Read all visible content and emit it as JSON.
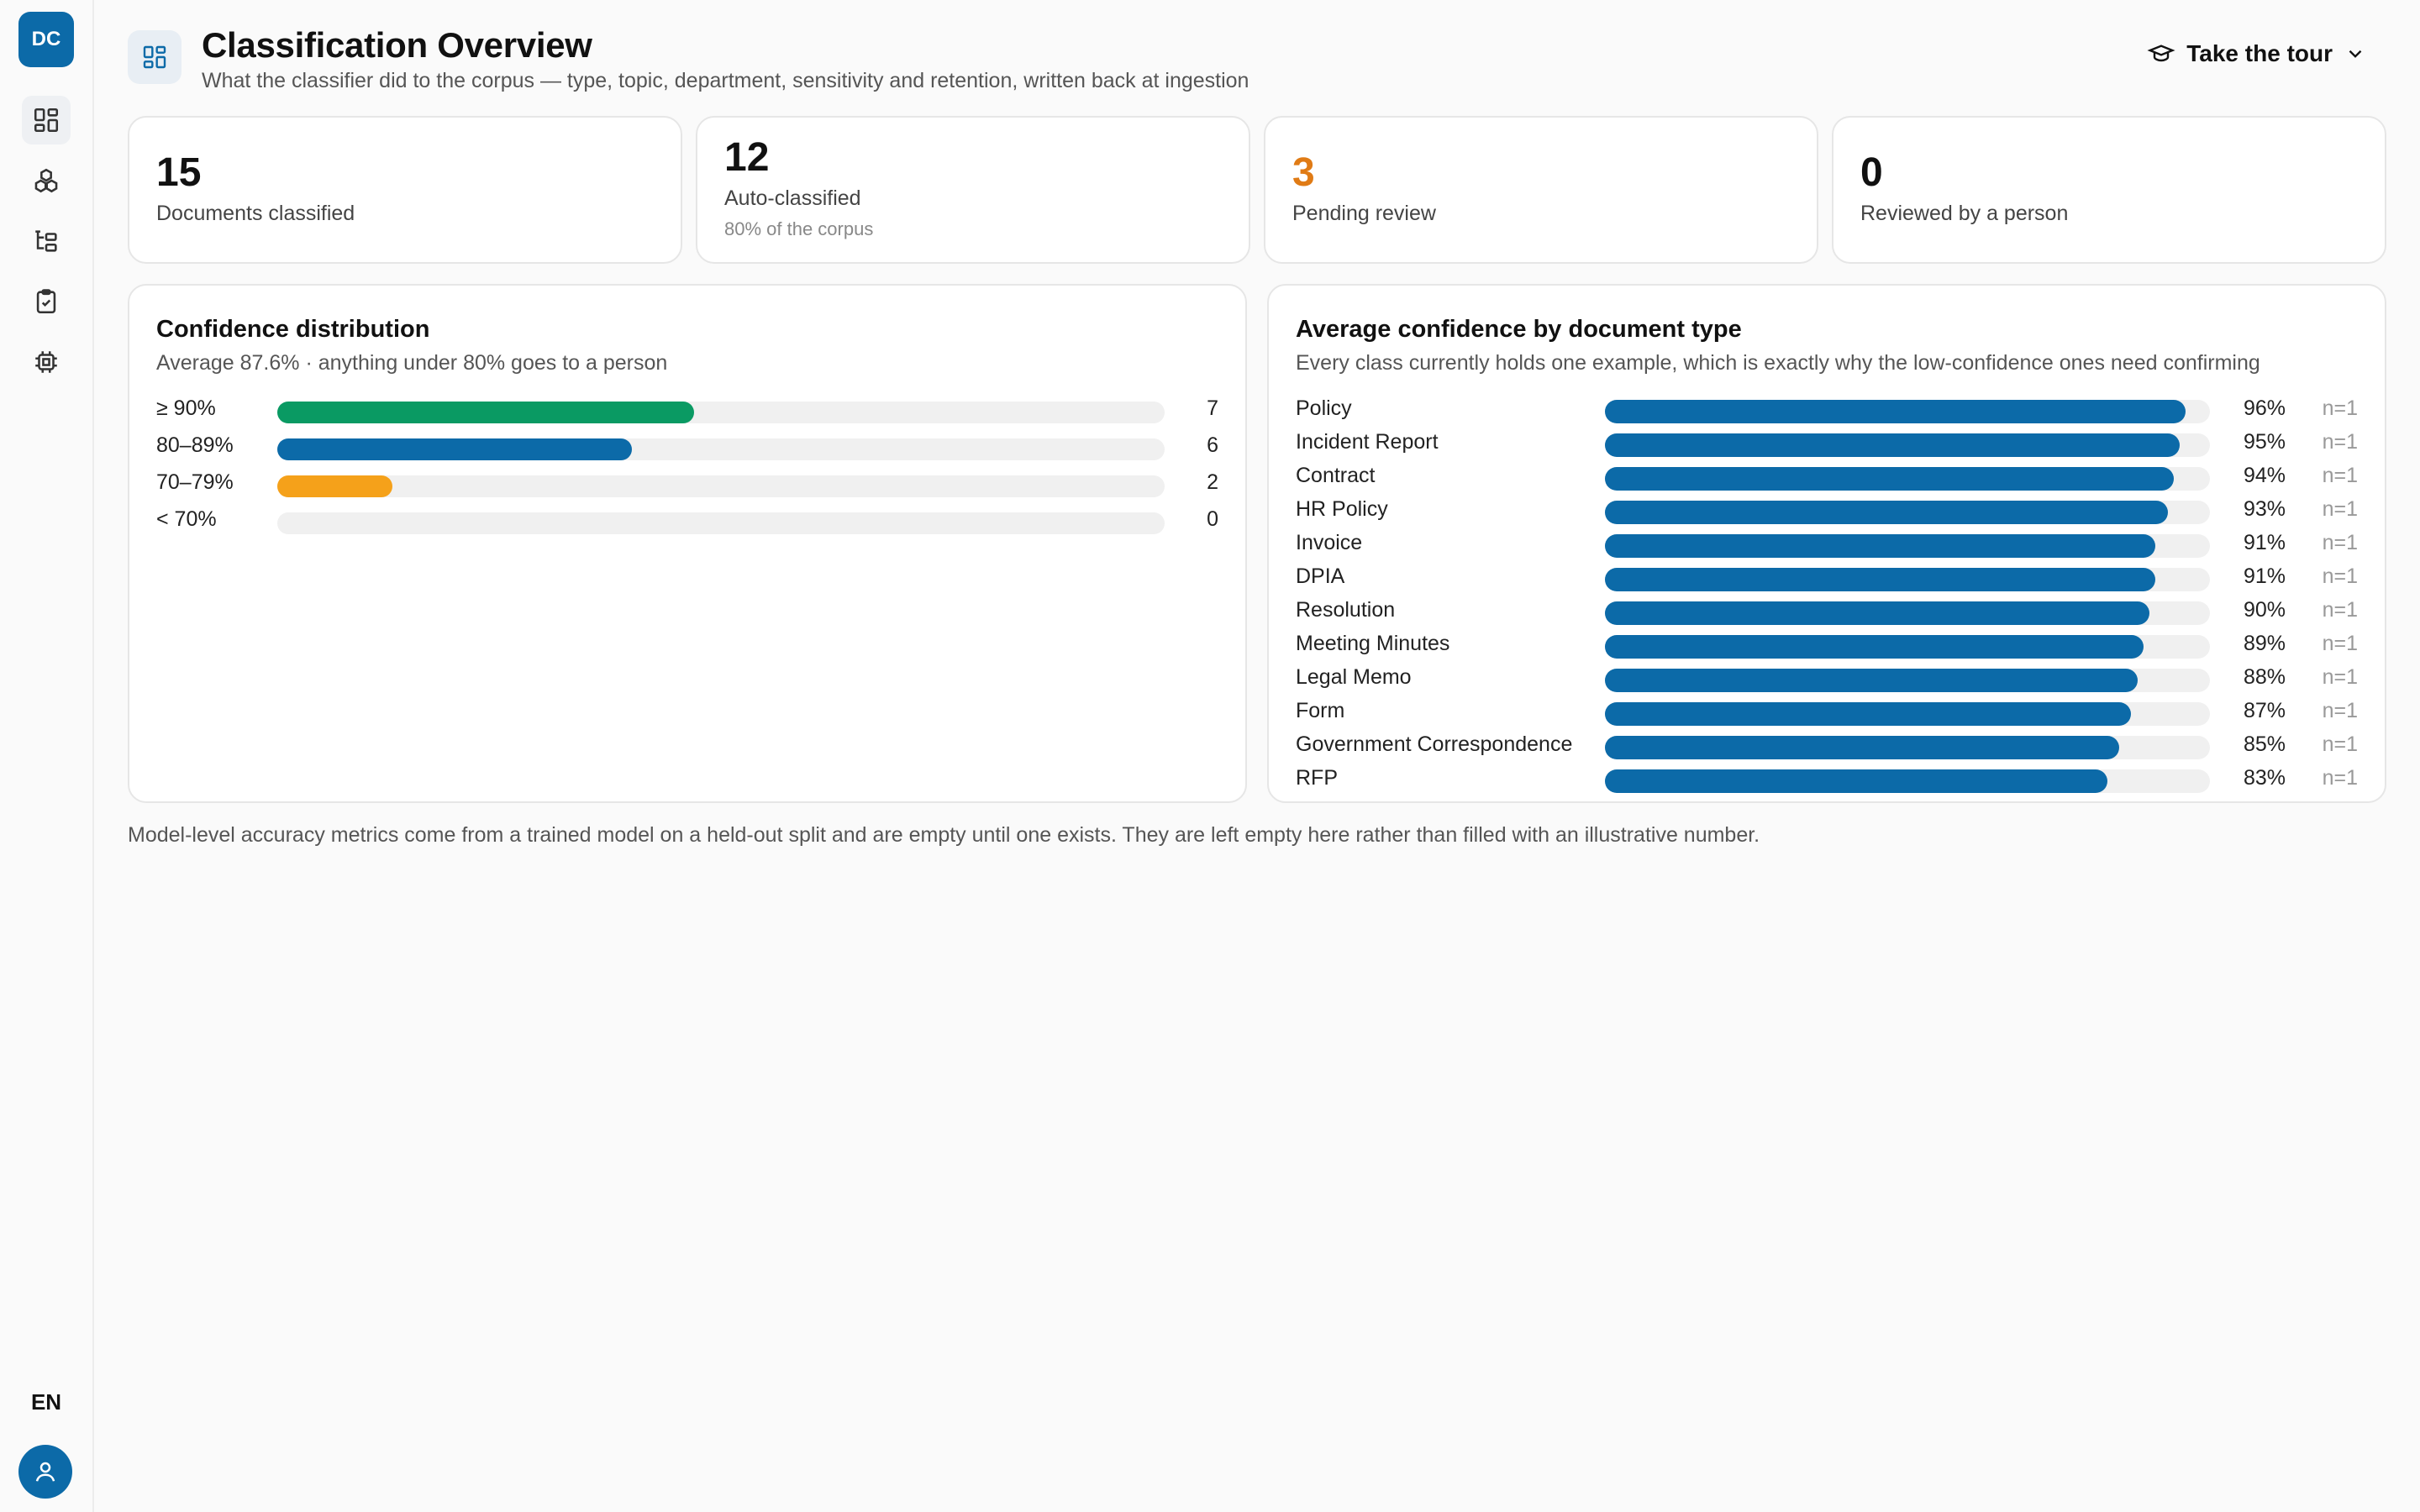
{
  "app": {
    "logo_text": "DC",
    "lang": "EN"
  },
  "header": {
    "title": "Classification Overview",
    "subtitle": "What the classifier did to the corpus — type, topic, department, sensitivity and retention, written back at ingestion",
    "tour_label": "Take the tour"
  },
  "stats": [
    {
      "value": "15",
      "label": "Documents classified"
    },
    {
      "value": "12",
      "label": "Auto-classified",
      "note": "80% of the corpus"
    },
    {
      "value": "3",
      "label": "Pending review",
      "color": "#e07b15"
    },
    {
      "value": "0",
      "label": "Reviewed by a person"
    }
  ],
  "confidence": {
    "title": "Confidence distribution",
    "subtitle": "Average 87.6% · anything under 80% goes to a person",
    "rows": [
      {
        "label": "≥ 90%",
        "count": "7",
        "fraction": 0.47,
        "color": "#0a9a63"
      },
      {
        "label": "80–89%",
        "count": "6",
        "fraction": 0.4,
        "color": "#0c6aa8"
      },
      {
        "label": "70–79%",
        "count": "2",
        "fraction": 0.13,
        "color": "#f5a11a"
      },
      {
        "label": "< 70%",
        "count": "0",
        "fraction": 0.0,
        "color": "#0c6aa8"
      }
    ]
  },
  "doc_types": {
    "title": "Average confidence by document type",
    "subtitle": "Every class currently holds one example, which is exactly why the low-confidence ones need confirming",
    "rows": [
      {
        "label": "Policy",
        "pct": "96%",
        "value": 0.96,
        "n": "n=1"
      },
      {
        "label": "Incident Report",
        "pct": "95%",
        "value": 0.95,
        "n": "n=1"
      },
      {
        "label": "Contract",
        "pct": "94%",
        "value": 0.94,
        "n": "n=1"
      },
      {
        "label": "HR Policy",
        "pct": "93%",
        "value": 0.93,
        "n": "n=1"
      },
      {
        "label": "Invoice",
        "pct": "91%",
        "value": 0.91,
        "n": "n=1"
      },
      {
        "label": "DPIA",
        "pct": "91%",
        "value": 0.91,
        "n": "n=1"
      },
      {
        "label": "Resolution",
        "pct": "90%",
        "value": 0.9,
        "n": "n=1"
      },
      {
        "label": "Meeting Minutes",
        "pct": "89%",
        "value": 0.89,
        "n": "n=1"
      },
      {
        "label": "Legal Memo",
        "pct": "88%",
        "value": 0.88,
        "n": "n=1"
      },
      {
        "label": "Form",
        "pct": "87%",
        "value": 0.87,
        "n": "n=1"
      },
      {
        "label": "Government Correspondence",
        "pct": "85%",
        "value": 0.85,
        "n": "n=1"
      },
      {
        "label": "RFP",
        "pct": "83%",
        "value": 0.83,
        "n": "n=1"
      }
    ]
  },
  "footnote": "Model-level accuracy metrics come from a trained model on a held-out split and are empty until one exists. They are left empty here rather than filled with an illustrative number."
}
